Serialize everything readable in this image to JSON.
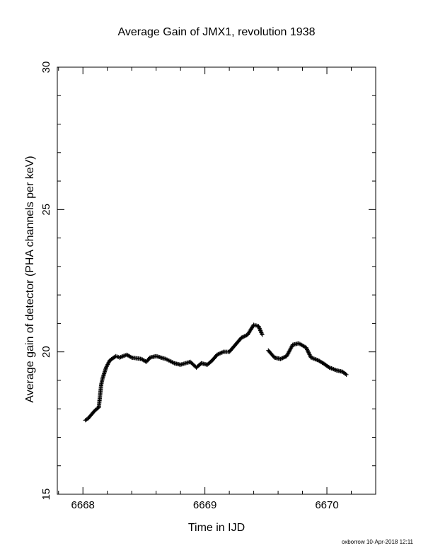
{
  "footer": "oxborrow 10-Apr-2018 12:11",
  "chart_data": {
    "type": "scatter",
    "title": "Average Gain of JMX1, revolution 1938",
    "xlabel": "Time in IJD",
    "ylabel": "Average gain of detector (PHA channels per keV)",
    "xlim": [
      6667.79,
      6670.4
    ],
    "ylim": [
      15,
      30
    ],
    "x_ticks": [
      6668,
      6669,
      6670
    ],
    "x_tick_labels": [
      "6668",
      "6669",
      "6670"
    ],
    "y_ticks": [
      15,
      20,
      25,
      30
    ],
    "y_tick_labels": [
      "15",
      "20",
      "25",
      "30"
    ],
    "marker": "+",
    "grid": false,
    "series": [
      {
        "x": [
          6668.02,
          6668.04,
          6668.1,
          6668.13,
          6668.15,
          6668.16,
          6668.19,
          6668.22,
          6668.27,
          6668.3,
          6668.36,
          6668.4,
          6668.48,
          6668.52,
          6668.55,
          6668.6,
          6668.68,
          6668.75,
          6668.8,
          6668.88,
          6668.93,
          6668.97,
          6669.02,
          6669.06,
          6669.1,
          6669.15,
          6669.2,
          6669.3,
          6669.35,
          6669.4,
          6669.44,
          6669.47,
          6669.52,
          6669.57,
          6669.62,
          6669.67,
          6669.72,
          6669.77,
          6669.83,
          6669.87,
          6669.93,
          6669.97,
          6670.02,
          6670.08,
          6670.13,
          6670.16
        ],
        "y": [
          17.6,
          17.65,
          17.95,
          18.05,
          18.85,
          19.05,
          19.45,
          19.7,
          19.85,
          19.8,
          19.9,
          19.8,
          19.75,
          19.65,
          19.8,
          19.85,
          19.75,
          19.6,
          19.55,
          19.65,
          19.45,
          19.6,
          19.55,
          19.7,
          19.9,
          20.0,
          20.0,
          20.5,
          20.6,
          20.95,
          20.9,
          20.6,
          20.05,
          19.8,
          19.75,
          19.85,
          20.25,
          20.3,
          20.15,
          19.8,
          19.7,
          19.6,
          19.45,
          19.35,
          19.3,
          19.2
        ]
      }
    ]
  }
}
